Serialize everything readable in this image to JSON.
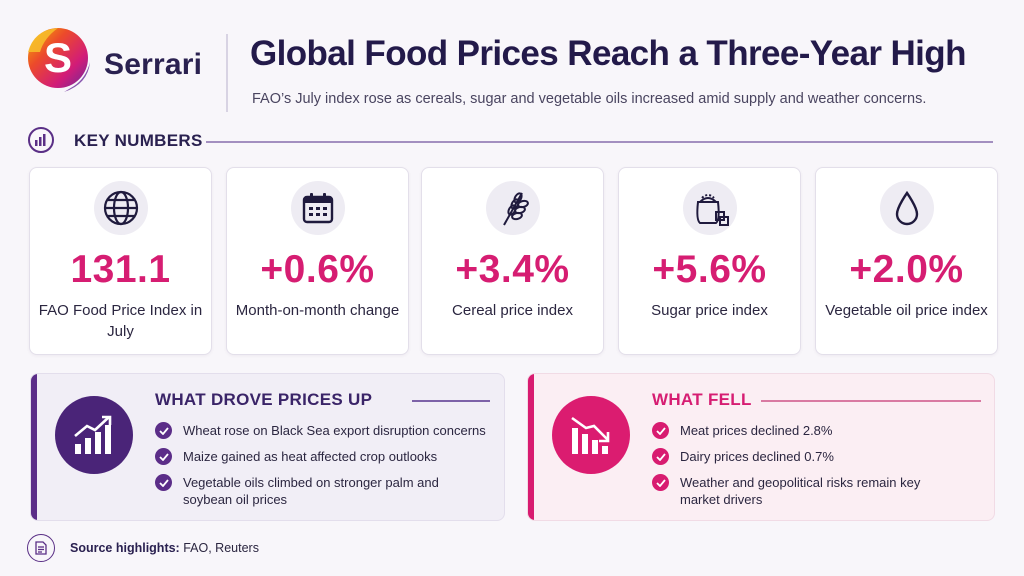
{
  "brand": {
    "name": "Serrari",
    "logo_letter": "S",
    "colors": {
      "purple": "#5b2d88",
      "magenta": "#d61d72",
      "dark": "#231a4a"
    }
  },
  "header": {
    "title": "Global Food Prices Reach a Three-Year High",
    "subtitle": "FAO’s July index rose as cereals, sugar and vegetable oils increased amid supply and weather concerns."
  },
  "key_numbers": {
    "heading": "KEY NUMBERS",
    "cards": [
      {
        "icon": "globe-icon",
        "value": "131.1",
        "label": "FAO Food Price Index in July"
      },
      {
        "icon": "calendar-icon",
        "value": "+0.6%",
        "label": "Month-on-month change"
      },
      {
        "icon": "wheat-icon",
        "value": "+3.4%",
        "label": "Cereal price index"
      },
      {
        "icon": "sugar-icon",
        "value": "+5.6%",
        "label": "Sugar price index"
      },
      {
        "icon": "oil-drop-icon",
        "value": "+2.0%",
        "label": "Vegetable oil price index"
      }
    ]
  },
  "drivers_up": {
    "title": "WHAT DROVE PRICES UP",
    "icon": "trend-up-icon",
    "items": [
      "Wheat rose on Black Sea export disruption concerns",
      "Maize gained as heat affected crop outlooks",
      "Vegetable oils climbed on stronger palm and soybean oil prices"
    ]
  },
  "what_fell": {
    "title": "WHAT FELL",
    "icon": "trend-down-icon",
    "items": [
      "Meat prices declined 2.8%",
      "Dairy prices declined 0.7%",
      "Weather and geopolitical risks remain key market drivers"
    ]
  },
  "footer": {
    "source_label": "Source highlights:",
    "source_value": "FAO, Reuters"
  }
}
